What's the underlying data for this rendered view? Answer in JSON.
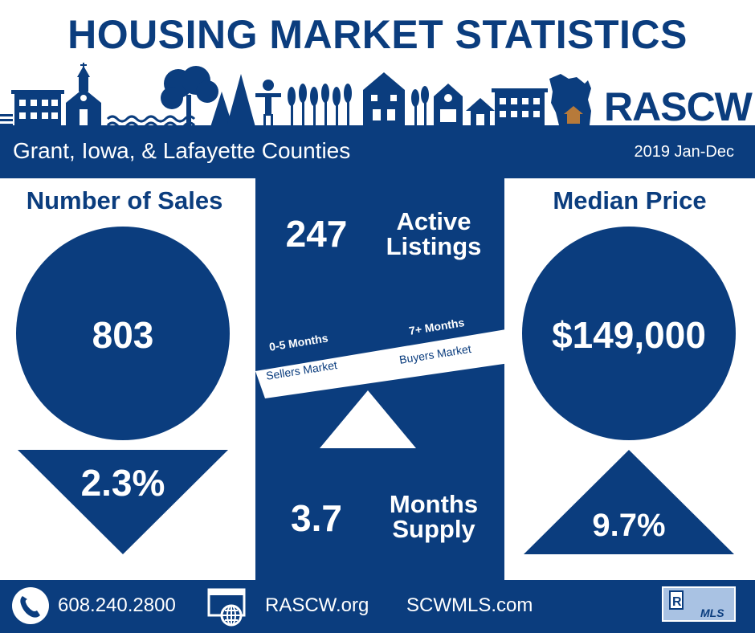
{
  "title": "HOUSING MARKET STATISTICS",
  "brand": {
    "name": "RASCW"
  },
  "banner": {
    "region": "Grant, Iowa, & Lafayette Counties",
    "period": "2019 Jan-Dec"
  },
  "sales": {
    "heading": "Number of Sales",
    "value": "803",
    "change": "2.3%",
    "direction": "down"
  },
  "median": {
    "heading": "Median Price",
    "value": "$149,000",
    "change": "9.7%",
    "direction": "up"
  },
  "listings": {
    "value": "247",
    "label_line1": "Active",
    "label_line2": "Listings"
  },
  "supply": {
    "value": "3.7",
    "label_line1": "Months",
    "label_line2": "Supply"
  },
  "scale": {
    "left_title": "0-5 Months",
    "left_sub": "Sellers Market",
    "right_title": "7+ Months",
    "right_sub": "Buyers Market"
  },
  "footer": {
    "phone": "608.240.2800",
    "site1": "RASCW.org",
    "site2": "SCWMLS.com",
    "mls_label": "MLS"
  },
  "icons": [
    "skyline-icon",
    "wisconsin-map-icon",
    "phone-icon",
    "web-globe-icon",
    "realtor-mls-logo-icon"
  ],
  "colors": {
    "navy": "#0b3d7e",
    "white": "#ffffff",
    "house": "#b77a3a"
  }
}
